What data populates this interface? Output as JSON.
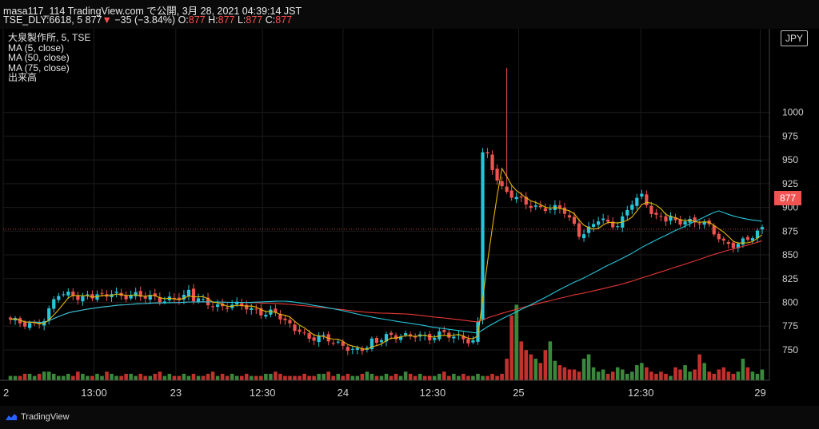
{
  "header": {
    "publish": "masa117_114 TradingView.com で公開, 3月 28, 2021 04:39:14 JST",
    "symbol": "TSE_DLY:6618, 5",
    "price": "877",
    "change": "−35 (−3.84%)",
    "o_label": "O:",
    "o": "877",
    "h_label": "H:",
    "h": "877",
    "l_label": "L:",
    "l": "877",
    "c_label": "C:",
    "c": "877"
  },
  "legend": {
    "title": "大泉製作所, 5, TSE",
    "ma5": "MA (5, close)",
    "ma50": "MA (50, close)",
    "ma75": "MA (75, close)",
    "volume": "出来高"
  },
  "currency": "JPY",
  "last_price_label": "877",
  "branding": "TradingView",
  "colors": {
    "up": "#26c6da",
    "down": "#ef5350",
    "ma5": "#e6b800",
    "ma50": "#26c6da",
    "ma75": "#e53935",
    "vol_up": "#43a047",
    "vol_down": "#e53935",
    "price_line": "#f05350"
  },
  "chart_data": {
    "type": "candlestick",
    "ylim": [
      718,
      1088
    ],
    "y_ticks": [
      750,
      775,
      800,
      825,
      850,
      875,
      900,
      925,
      950,
      975,
      1000
    ],
    "x_tick_labels": [
      "2",
      "13:00",
      "23",
      "12:30",
      "24",
      "12:30",
      "25",
      "12:30",
      "29"
    ],
    "last_price": 877,
    "series": [
      {
        "name": "MA (5, close)"
      },
      {
        "name": "MA (50, close)"
      },
      {
        "name": "MA (75, close)"
      },
      {
        "name": "出来高"
      }
    ],
    "segments": [
      {
        "n": 18,
        "vals": [
          782,
          778,
          776,
          783,
          810,
          808,
          805,
          806
        ]
      },
      {
        "n": 20,
        "vals": [
          806,
          810,
          806,
          808,
          806,
          802,
          804,
          810
        ]
      },
      {
        "n": 20,
        "vals": [
          804,
          800,
          794,
          798,
          796,
          788,
          790,
          782
        ]
      },
      {
        "n": 18,
        "vals": [
          778,
          766,
          762,
          764,
          756,
          752,
          748,
          760
        ]
      },
      {
        "n": 20,
        "vals": [
          760,
          765,
          764,
          766,
          762,
          768,
          764,
          760
        ]
      },
      {
        "n": 3,
        "vals": [
          760,
          780,
          958
        ]
      },
      {
        "n": 20,
        "vals": [
          955,
          920,
          912,
          904,
          898,
          900,
          896,
          870
        ]
      },
      {
        "n": 18,
        "vals": [
          870,
          888,
          884,
          880,
          905,
          912,
          890,
          888
        ]
      },
      {
        "n": 20,
        "vals": [
          888,
          884,
          886,
          880,
          862,
          860,
          868,
          877
        ]
      }
    ],
    "volume": [
      2,
      2,
      2,
      3,
      3,
      2,
      3,
      4,
      4,
      3,
      2,
      2,
      3,
      2,
      4,
      3,
      2,
      2,
      3,
      2,
      4,
      3,
      2,
      2,
      3,
      3,
      2,
      3,
      2,
      2,
      3,
      4,
      2,
      3,
      2,
      2,
      3,
      2,
      3,
      2,
      2,
      3,
      4,
      2,
      3,
      2,
      3,
      2,
      2,
      3,
      2,
      2,
      2,
      3,
      3,
      4,
      3,
      2,
      2,
      2,
      2,
      3,
      2,
      2,
      3,
      3,
      4,
      2,
      3,
      2,
      3,
      2,
      2,
      3,
      4,
      3,
      2,
      2,
      3,
      2,
      3,
      2,
      4,
      3,
      2,
      3,
      2,
      2,
      2,
      3,
      4,
      2,
      3,
      2,
      3,
      2,
      2,
      3,
      2,
      2,
      3,
      2,
      3,
      10,
      30,
      35,
      18,
      14,
      12,
      10,
      8,
      14,
      18,
      9,
      7,
      6,
      5,
      5,
      4,
      10,
      12,
      6,
      4,
      5,
      3,
      4,
      6,
      5,
      3,
      4,
      7,
      8,
      6,
      4,
      3,
      4,
      3,
      2,
      6,
      5,
      7,
      4,
      5,
      12,
      8,
      4,
      3,
      5,
      6,
      4,
      3,
      4,
      10,
      6,
      4,
      3,
      5,
      4,
      3,
      4,
      3,
      5,
      4,
      3,
      6,
      8,
      10,
      6,
      4,
      5,
      6,
      8
    ],
    "vol_max": 37
  }
}
